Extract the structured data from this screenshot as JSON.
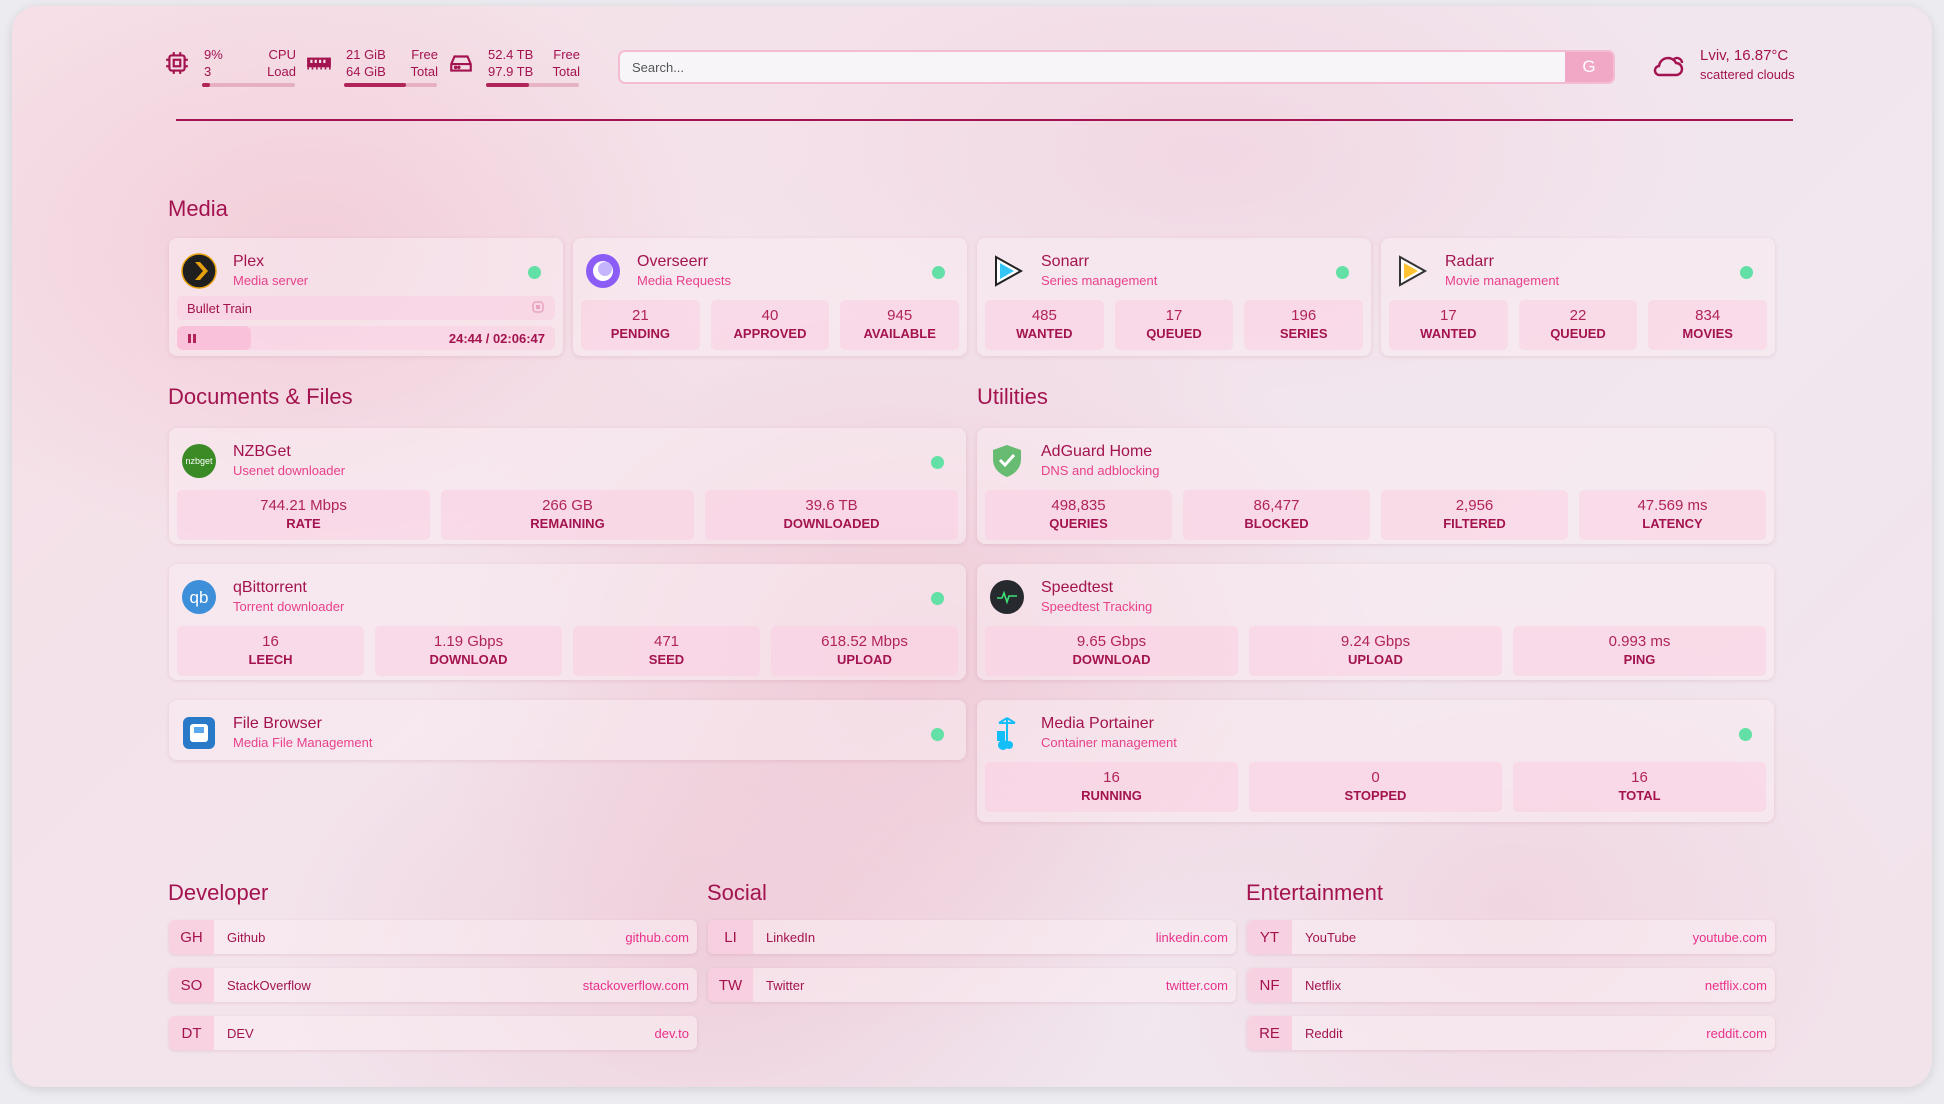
{
  "header": {
    "cpu": {
      "icon": "cpu-icon",
      "value": "9%",
      "cores": "3",
      "label1": "CPU",
      "label2": "Load",
      "fill": 0.09
    },
    "memory": {
      "icon": "memory-icon",
      "free": "21 GiB",
      "total": "64 GiB",
      "label1": "Free",
      "label2": "Total",
      "fill": 0.67
    },
    "disk": {
      "icon": "disk-icon",
      "free": "52.4 TB",
      "total": "97.9 TB",
      "label1": "Free",
      "label2": "Total",
      "fill": 0.46
    },
    "search": {
      "placeholder": "Search...",
      "engine_label": "G"
    },
    "weather": {
      "icon": "cloud-icon",
      "location_temp": "Lviv, 16.87°C",
      "condition": "scattered clouds"
    }
  },
  "colors": {
    "primary": "#a3134f",
    "accent": "#e8418b",
    "status_ok": "#63e0a5"
  },
  "sections": {
    "media": "Media",
    "documents": "Documents & Files",
    "utilities": "Utilities",
    "developer": "Developer",
    "social": "Social",
    "entertainment": "Entertainment"
  },
  "media": [
    {
      "id": "plex",
      "icon": "plex-icon",
      "title": "Plex",
      "subtitle": "Media server",
      "status": "online",
      "now_playing": {
        "title": "Bullet Train",
        "state_icon": "pause-icon",
        "position": "24:44",
        "duration": "02:06:47",
        "progress": 0.195
      }
    },
    {
      "id": "overseerr",
      "icon": "overseerr-icon",
      "title": "Overseerr",
      "subtitle": "Media Requests",
      "status": "online",
      "stats": [
        {
          "value": "21",
          "label": "PENDING"
        },
        {
          "value": "40",
          "label": "APPROVED"
        },
        {
          "value": "945",
          "label": "AVAILABLE"
        }
      ]
    },
    {
      "id": "sonarr",
      "icon": "sonarr-icon",
      "title": "Sonarr",
      "subtitle": "Series management",
      "status": "online",
      "stats": [
        {
          "value": "485",
          "label": "WANTED"
        },
        {
          "value": "17",
          "label": "QUEUED"
        },
        {
          "value": "196",
          "label": "SERIES"
        }
      ]
    },
    {
      "id": "radarr",
      "icon": "radarr-icon",
      "title": "Radarr",
      "subtitle": "Movie management",
      "status": "online",
      "stats": [
        {
          "value": "17",
          "label": "WANTED"
        },
        {
          "value": "22",
          "label": "QUEUED"
        },
        {
          "value": "834",
          "label": "MOVIES"
        }
      ]
    }
  ],
  "documents": [
    {
      "id": "nzbget",
      "icon": "nzbget-icon",
      "title": "NZBGet",
      "subtitle": "Usenet downloader",
      "status": "online",
      "stats": [
        {
          "value": "744.21 Mbps",
          "label": "RATE"
        },
        {
          "value": "266 GB",
          "label": "REMAINING"
        },
        {
          "value": "39.6 TB",
          "label": "DOWNLOADED"
        }
      ]
    },
    {
      "id": "qbittorrent",
      "icon": "qbittorrent-icon",
      "title": "qBittorrent",
      "subtitle": "Torrent downloader",
      "status": "online",
      "stats": [
        {
          "value": "16",
          "label": "LEECH"
        },
        {
          "value": "1.19 Gbps",
          "label": "DOWNLOAD"
        },
        {
          "value": "471",
          "label": "SEED"
        },
        {
          "value": "618.52 Mbps",
          "label": "UPLOAD"
        }
      ]
    },
    {
      "id": "filebrowser",
      "icon": "file-browser-icon",
      "title": "File Browser",
      "subtitle": "Media File Management",
      "status": "online"
    }
  ],
  "utilities": [
    {
      "id": "adguard",
      "icon": "adguard-shield-icon",
      "title": "AdGuard Home",
      "subtitle": "DNS and adblocking",
      "stats": [
        {
          "value": "498,835",
          "label": "QUERIES"
        },
        {
          "value": "86,477",
          "label": "BLOCKED"
        },
        {
          "value": "2,956",
          "label": "FILTERED"
        },
        {
          "value": "47.569 ms",
          "label": "LATENCY"
        }
      ]
    },
    {
      "id": "speedtest",
      "icon": "speedtest-icon",
      "title": "Speedtest",
      "subtitle": "Speedtest Tracking",
      "stats": [
        {
          "value": "9.65 Gbps",
          "label": "DOWNLOAD"
        },
        {
          "value": "9.24 Gbps",
          "label": "UPLOAD"
        },
        {
          "value": "0.993 ms",
          "label": "PING"
        }
      ]
    },
    {
      "id": "portainer",
      "icon": "portainer-icon",
      "title": "Media Portainer",
      "subtitle": "Container management",
      "status": "online",
      "stats": [
        {
          "value": "16",
          "label": "RUNNING"
        },
        {
          "value": "0",
          "label": "STOPPED"
        },
        {
          "value": "16",
          "label": "TOTAL"
        }
      ]
    }
  ],
  "bookmarks": {
    "developer": [
      {
        "abbr": "GH",
        "name": "Github",
        "url": "github.com"
      },
      {
        "abbr": "SO",
        "name": "StackOverflow",
        "url": "stackoverflow.com"
      },
      {
        "abbr": "DT",
        "name": "DEV",
        "url": "dev.to"
      }
    ],
    "social": [
      {
        "abbr": "LI",
        "name": "LinkedIn",
        "url": "linkedin.com"
      },
      {
        "abbr": "TW",
        "name": "Twitter",
        "url": "twitter.com"
      }
    ],
    "entertainment": [
      {
        "abbr": "YT",
        "name": "YouTube",
        "url": "youtube.com"
      },
      {
        "abbr": "NF",
        "name": "Netflix",
        "url": "netflix.com"
      },
      {
        "abbr": "RE",
        "name": "Reddit",
        "url": "reddit.com"
      }
    ]
  }
}
